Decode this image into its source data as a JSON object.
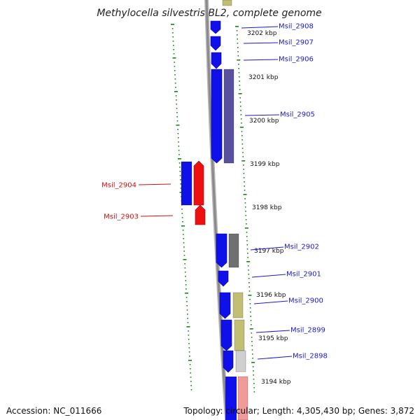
{
  "title": "Methylocella silvestris BL2, complete genome",
  "accession": "Accession: NC_011666",
  "topology": "Topology: circular; Length: 4,305,430 bp; Genes: 3,872",
  "colors": {
    "gene_forward": "#1010e8",
    "gene_reverse": "#ee1010",
    "label_forward": "#1a1ad0",
    "label_reverse": "#d01010",
    "backbone": "#8a8a8a",
    "tick": "#118811"
  },
  "kbp_marks": [
    "3202 kbp",
    "3201 kbp",
    "3200 kbp",
    "3199 kbp",
    "3198 kbp",
    "3197 kbp",
    "3196 kbp",
    "3195 kbp",
    "3194 kbp"
  ],
  "genes": [
    {
      "id": "Msil_2908",
      "strand": "+"
    },
    {
      "id": "Msil_2907",
      "strand": "+"
    },
    {
      "id": "Msil_2906",
      "strand": "+"
    },
    {
      "id": "Msil_2905",
      "strand": "+"
    },
    {
      "id": "Msil_2904",
      "strand": "-"
    },
    {
      "id": "Msil_2903",
      "strand": "-"
    },
    {
      "id": "Msil_2902",
      "strand": "+"
    },
    {
      "id": "Msil_2901",
      "strand": "+"
    },
    {
      "id": "Msil_2900",
      "strand": "+"
    },
    {
      "id": "Msil_2899",
      "strand": "+"
    },
    {
      "id": "Msil_2898",
      "strand": "+"
    }
  ]
}
